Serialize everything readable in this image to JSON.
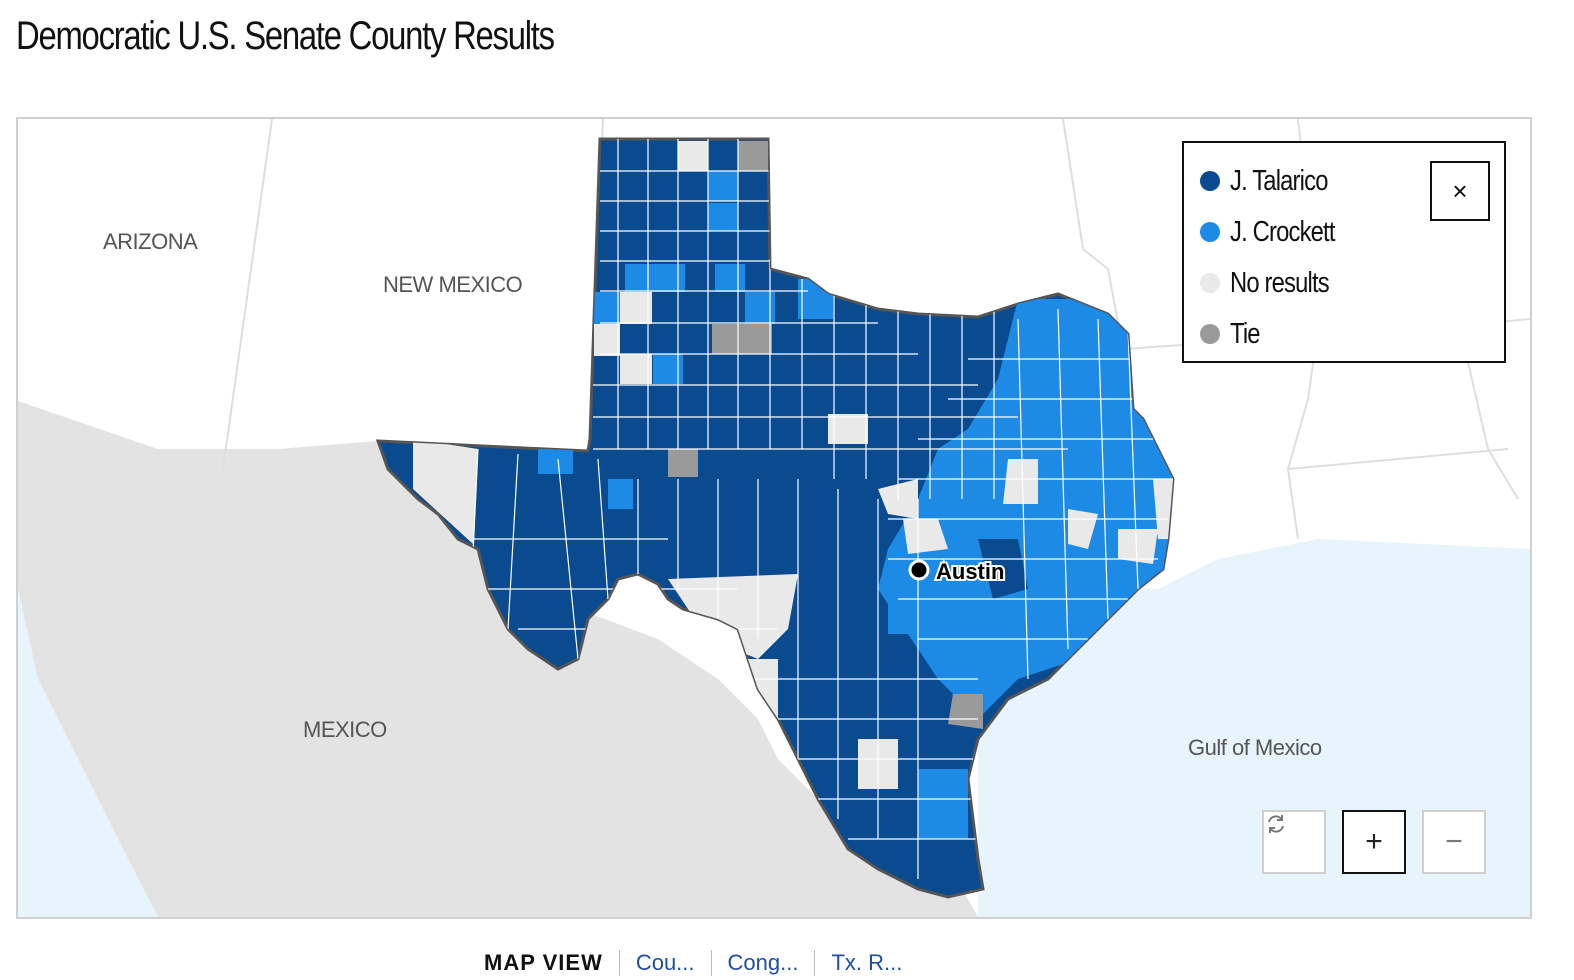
{
  "page": {
    "title": "Democratic U.S. Senate County Results"
  },
  "map": {
    "region_labels": [
      "ARIZONA",
      "NEW MEXICO",
      "MEXICO",
      "Gulf of Mexico"
    ],
    "city": "Austin"
  },
  "legend": {
    "items": [
      {
        "label": "J. Talarico",
        "color": "#0a4a8f"
      },
      {
        "label": "J. Crockett",
        "color": "#1d8be6"
      },
      {
        "label": "No results",
        "color": "#e9e9e9"
      },
      {
        "label": "Tie",
        "color": "#9a9a9a"
      }
    ],
    "close_symbol": "×"
  },
  "controls": {
    "reset_icon": "refresh-icon",
    "zoom_in": "+",
    "zoom_out": "−"
  },
  "view_tabs": {
    "label": "MAP VIEW",
    "tabs": [
      "Cou...",
      "Cong...",
      "Tx. R..."
    ]
  }
}
